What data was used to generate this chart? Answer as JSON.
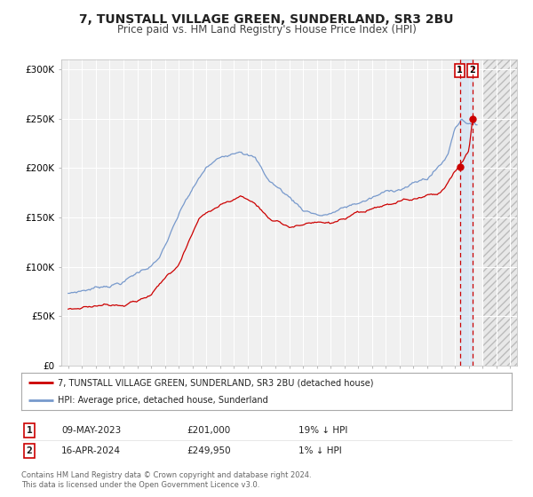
{
  "title": "7, TUNSTALL VILLAGE GREEN, SUNDERLAND, SR3 2BU",
  "subtitle": "Price paid vs. HM Land Registry's House Price Index (HPI)",
  "background_color": "#ffffff",
  "plot_bg_color": "#f0f0f0",
  "grid_color": "#ffffff",
  "hpi_color": "#7799cc",
  "price_color": "#cc0000",
  "sale1_date_num": 2023.36,
  "sale1_price": 201000,
  "sale2_date_num": 2024.29,
  "sale2_price": 249950,
  "legend_line1": "7, TUNSTALL VILLAGE GREEN, SUNDERLAND, SR3 2BU (detached house)",
  "legend_line2": "HPI: Average price, detached house, Sunderland",
  "table_row1_date": "09-MAY-2023",
  "table_row1_price": "£201,000",
  "table_row1_hpi": "19% ↓ HPI",
  "table_row2_date": "16-APR-2024",
  "table_row2_price": "£249,950",
  "table_row2_hpi": "1% ↓ HPI",
  "footer1": "Contains HM Land Registry data © Crown copyright and database right 2024.",
  "footer2": "This data is licensed under the Open Government Licence v3.0.",
  "ylim": [
    0,
    310000
  ],
  "xlim_start": 1994.5,
  "xlim_end": 2027.5
}
